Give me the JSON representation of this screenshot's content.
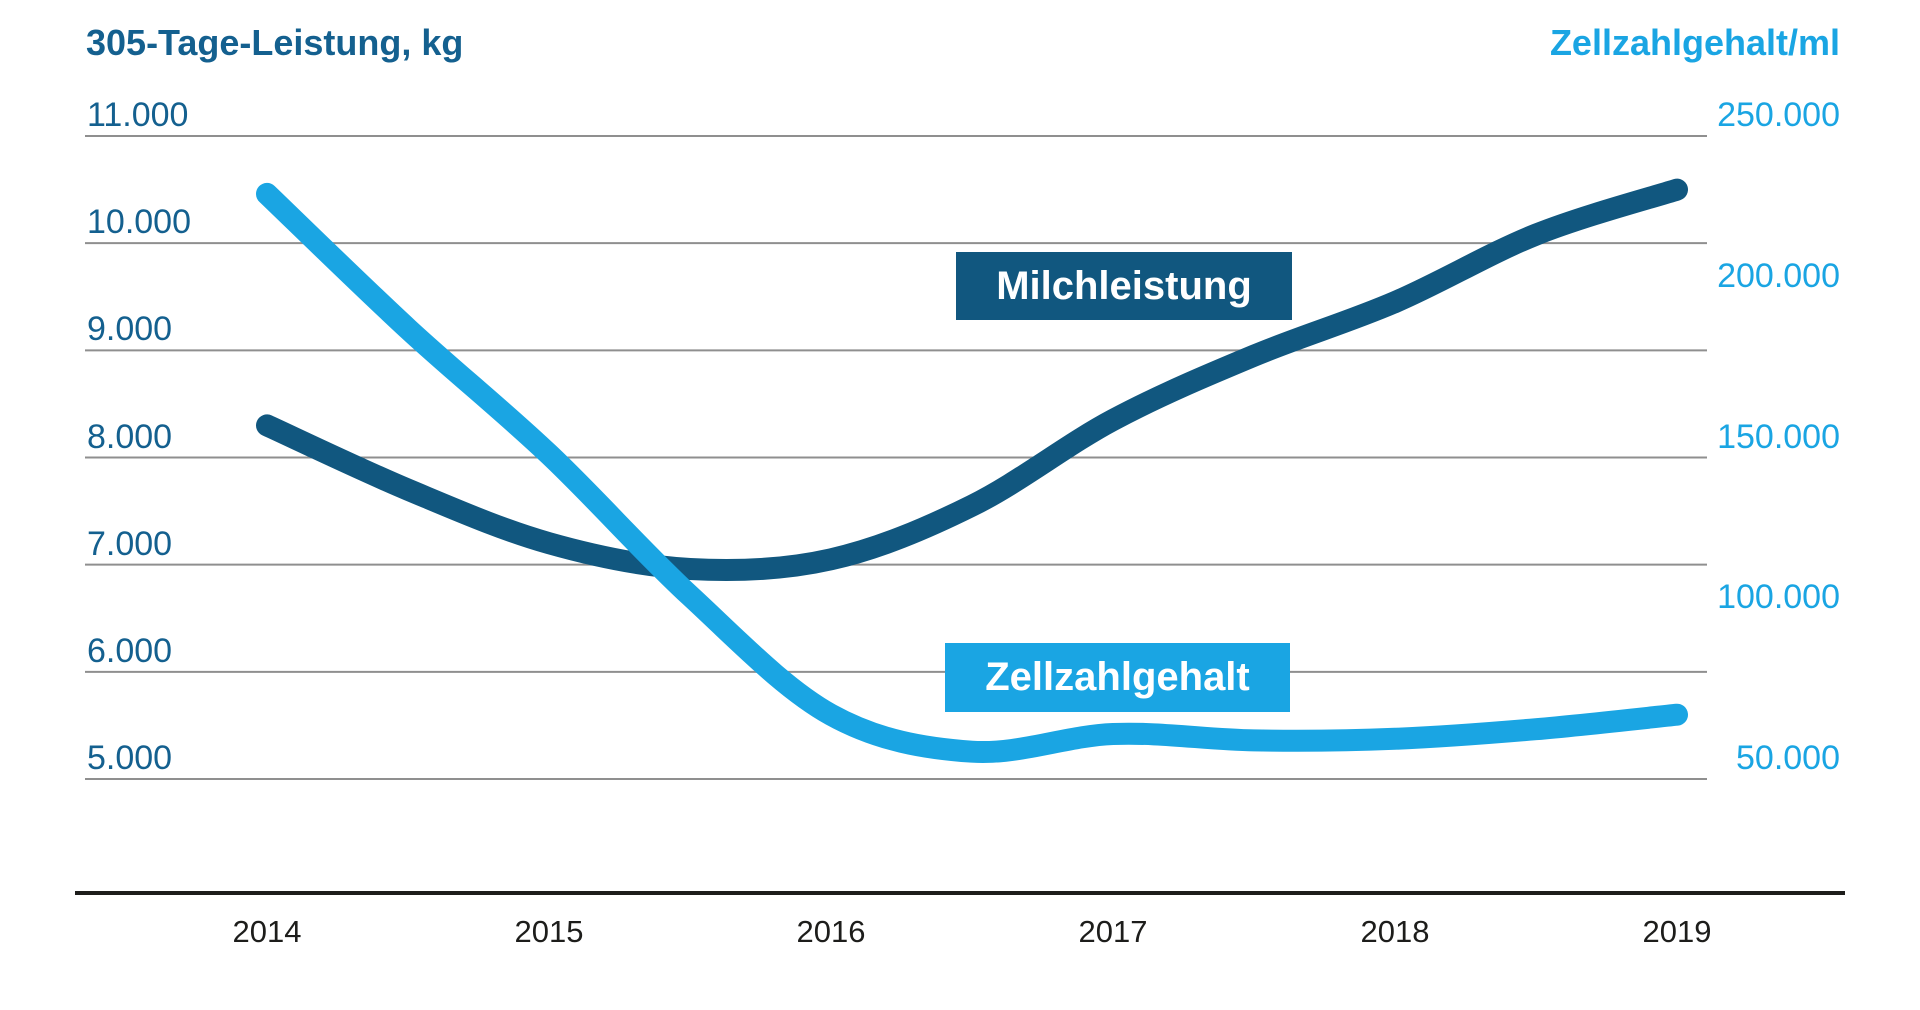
{
  "chart_data": {
    "type": "line",
    "title_left": "305-Tage-Leistung, kg",
    "title_right": "Zellzahlgehalt/ml",
    "x": [
      "2014",
      "2015",
      "2016",
      "2017",
      "2018",
      "2019"
    ],
    "left_axis": {
      "ticks": [
        "11.000",
        "10.000",
        "9.000",
        "8.000",
        "7.000",
        "6.000",
        "5.000"
      ],
      "min": 5000,
      "max": 11000,
      "step": 1000
    },
    "right_axis": {
      "ticks": [
        "250.000",
        "200.000",
        "150.000",
        "100.000",
        "50.000"
      ],
      "min": 50000,
      "max": 250000,
      "step": 50000
    },
    "grid": true,
    "series": [
      {
        "name": "Milchleistung",
        "axis": "left",
        "color": "#11577f",
        "values": [
          8300,
          7200,
          7050,
          8350,
          9450,
          10500
        ],
        "points": [
          [
            2014,
            8300
          ],
          [
            2014.5,
            7700
          ],
          [
            2015,
            7200
          ],
          [
            2015.5,
            6960
          ],
          [
            2016,
            7050
          ],
          [
            2016.5,
            7550
          ],
          [
            2017,
            8350
          ],
          [
            2017.5,
            8950
          ],
          [
            2018,
            9450
          ],
          [
            2018.5,
            10080
          ],
          [
            2019,
            10500
          ]
        ]
      },
      {
        "name": "Zellzahlgehalt",
        "axis": "right",
        "color": "#1aa5e3",
        "values": [
          232000,
          151000,
          70000,
          64000,
          62500,
          70000
        ],
        "points": [
          [
            2014,
            232000
          ],
          [
            2014.5,
            190000
          ],
          [
            2015,
            151000
          ],
          [
            2015.5,
            107000
          ],
          [
            2016,
            70000
          ],
          [
            2016.5,
            58500
          ],
          [
            2017,
            64000
          ],
          [
            2017.5,
            62000
          ],
          [
            2018,
            62500
          ],
          [
            2018.5,
            65500
          ],
          [
            2019,
            70000
          ]
        ]
      }
    ]
  },
  "colors": {
    "dark_blue": "#11577f",
    "light_blue": "#1aa5e3",
    "grid": "#8f8f8f",
    "axis": "#1d1d1b",
    "year_text": "#1d1d1b"
  }
}
